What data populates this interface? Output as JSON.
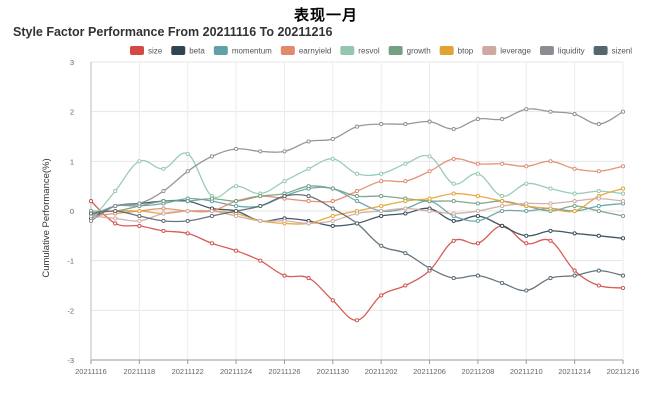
{
  "header": {
    "top_title": "表现一月"
  },
  "chart_data": {
    "type": "line",
    "title": "Style Factor Performance From 20211116 To 20211216",
    "xlabel": "",
    "ylabel": "Cumulative Performance(%)",
    "ylim": [
      -3,
      3
    ],
    "yticks": [
      "3",
      "2",
      "1",
      "0",
      "-1",
      "-2",
      "-3"
    ],
    "grid": true,
    "legend_position": "top",
    "x": [
      "20211116",
      "20211117",
      "20211118",
      "20211119",
      "20211122",
      "20211123",
      "20211124",
      "20211125",
      "20211126",
      "20211129",
      "20211130",
      "20211201",
      "20211202",
      "20211203",
      "20211206",
      "20211207",
      "20211208",
      "20211209",
      "20211210",
      "20211213",
      "20211214",
      "20211215",
      "20211216"
    ],
    "xtick_labels": [
      "20211116",
      "20211118",
      "20211122",
      "20211124",
      "20211126",
      "20211130",
      "20211202",
      "20211206",
      "20211208",
      "20211210",
      "20211214",
      "20211216"
    ],
    "series": [
      {
        "name": "size",
        "color": "#d14a46",
        "values": [
          0.2,
          -0.25,
          -0.3,
          -0.4,
          -0.45,
          -0.65,
          -0.8,
          -1.0,
          -1.3,
          -1.35,
          -1.8,
          -2.2,
          -1.7,
          -1.5,
          -1.2,
          -0.6,
          -0.65,
          -0.3,
          -0.65,
          -0.6,
          -1.2,
          -1.5,
          -1.55
        ]
      },
      {
        "name": "beta",
        "color": "#2f4554",
        "values": [
          -0.15,
          0.1,
          0.15,
          0.2,
          0.2,
          0.05,
          0.0,
          -0.2,
          -0.15,
          -0.2,
          -0.3,
          -0.25,
          -0.1,
          -0.05,
          0.05,
          -0.2,
          -0.1,
          -0.3,
          -0.5,
          -0.4,
          -0.45,
          -0.5,
          -0.55
        ]
      },
      {
        "name": "momentum",
        "color": "#61a0a8",
        "values": [
          -0.1,
          0.1,
          0.1,
          0.15,
          0.25,
          0.2,
          0.1,
          0.1,
          0.3,
          0.45,
          0.45,
          0.2,
          0.0,
          0.05,
          0.2,
          -0.1,
          -0.2,
          0.0,
          0.0,
          0.05,
          0.0,
          0.1,
          0.15
        ]
      },
      {
        "name": "earnyield",
        "color": "#e0896b",
        "values": [
          -0.1,
          -0.05,
          0.0,
          0.05,
          0.0,
          0.0,
          0.2,
          0.3,
          0.25,
          0.2,
          0.2,
          0.4,
          0.6,
          0.6,
          0.8,
          1.05,
          0.95,
          0.95,
          0.9,
          1.0,
          0.85,
          0.8,
          0.9
        ]
      },
      {
        "name": "resvol",
        "color": "#91c7ae",
        "values": [
          -0.2,
          0.4,
          1.0,
          0.85,
          1.15,
          0.3,
          0.5,
          0.35,
          0.6,
          0.85,
          1.05,
          0.75,
          0.75,
          0.95,
          1.1,
          0.55,
          0.75,
          0.3,
          0.55,
          0.45,
          0.35,
          0.4,
          0.35
        ]
      },
      {
        "name": "growth",
        "color": "#749f83",
        "values": [
          0.0,
          0.0,
          0.1,
          0.2,
          0.2,
          0.25,
          0.2,
          0.3,
          0.35,
          0.5,
          0.45,
          0.3,
          0.3,
          0.25,
          0.2,
          0.2,
          0.15,
          0.2,
          0.1,
          0.0,
          0.1,
          0.0,
          -0.1
        ]
      },
      {
        "name": "btop",
        "color": "#e3a333",
        "values": [
          -0.05,
          0.0,
          0.0,
          -0.05,
          0.0,
          0.0,
          -0.05,
          -0.2,
          -0.25,
          -0.25,
          -0.1,
          0.0,
          0.1,
          0.2,
          0.25,
          0.35,
          0.3,
          0.2,
          0.1,
          0.05,
          0.0,
          0.3,
          0.45
        ]
      },
      {
        "name": "leverage",
        "color": "#cfa9a1",
        "values": [
          -0.1,
          -0.15,
          -0.2,
          -0.05,
          0.0,
          0.0,
          -0.1,
          -0.2,
          -0.2,
          -0.25,
          -0.2,
          -0.05,
          0.0,
          0.05,
          0.0,
          -0.05,
          0.0,
          0.1,
          0.15,
          0.15,
          0.2,
          0.25,
          0.2
        ]
      },
      {
        "name": "liquidity",
        "color": "#8a8e93",
        "values": [
          -0.2,
          0.1,
          0.15,
          0.4,
          0.8,
          1.1,
          1.25,
          1.2,
          1.2,
          1.4,
          1.45,
          1.7,
          1.75,
          1.75,
          1.8,
          1.65,
          1.85,
          1.85,
          2.05,
          2.0,
          1.95,
          1.75,
          2.0
        ]
      },
      {
        "name": "sizenl",
        "color": "#556670",
        "values": [
          -0.05,
          0.0,
          -0.1,
          -0.2,
          -0.2,
          -0.1,
          0.0,
          0.1,
          0.3,
          0.3,
          0.05,
          -0.25,
          -0.7,
          -0.85,
          -1.15,
          -1.35,
          -1.3,
          -1.45,
          -1.6,
          -1.35,
          -1.3,
          -1.2,
          -1.3
        ]
      }
    ]
  }
}
